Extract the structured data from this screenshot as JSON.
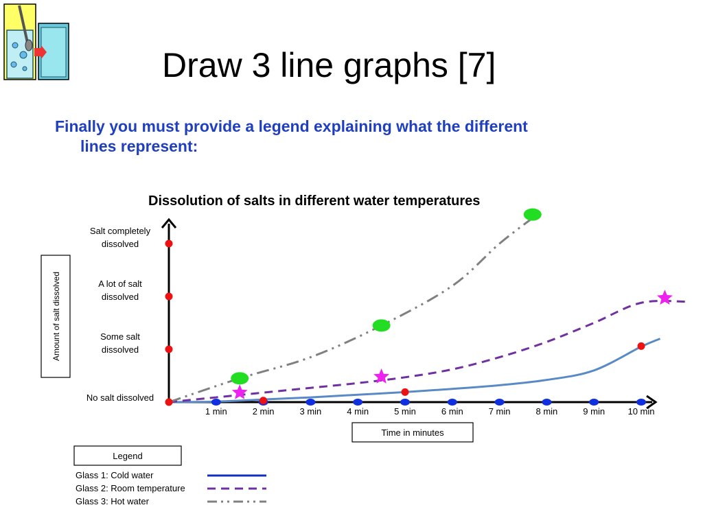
{
  "slide": {
    "title": "Draw 3 line graphs [7]",
    "body_line1": "Finally you must provide a legend explaining what the different",
    "body_line2": "lines represent:"
  },
  "colors": {
    "title": "#000000",
    "body": "#1f3fbf",
    "cold_line": "#5a8ac6",
    "cold_legend": "#1030c0",
    "room_line": "#7030a0",
    "hot_line": "#808080",
    "red_marker": "#ee1111",
    "blue_marker": "#1030e0",
    "green_marker": "#22dd22",
    "star_marker": "#ee22ee"
  },
  "chart_data": {
    "type": "line",
    "title": "Dissolution of salts in different water temperatures",
    "xlabel": "Time in minutes",
    "ylabel": "Amount of salt dissolved",
    "x_ticks": [
      "1 min",
      "2 min",
      "3 min",
      "4 min",
      "5 min",
      "6 min",
      "7 min",
      "8 min",
      "9 min",
      "10 min"
    ],
    "y_levels": [
      "No salt dissolved",
      "Some salt dissolved",
      "A lot of salt dissolved",
      "Salt completely dissolved"
    ],
    "legend_title": "Legend",
    "series": [
      {
        "name": "Glass 1: Cold water",
        "style": "solid",
        "x": [
          0,
          1,
          2,
          3,
          4,
          5,
          6,
          7,
          8,
          9,
          10,
          10.4
        ],
        "y": [
          0,
          0.01,
          0.05,
          0.09,
          0.14,
          0.19,
          0.25,
          0.32,
          0.42,
          0.6,
          1.05,
          1.2
        ],
        "markers": [
          {
            "x": 2,
            "y": 0.03
          },
          {
            "x": 5,
            "y": 0.19
          },
          {
            "x": 10,
            "y": 1.06
          }
        ]
      },
      {
        "name": "Glass 2: Room temperature",
        "style": "dashed",
        "x": [
          0,
          1,
          2,
          3,
          4,
          5,
          6,
          7,
          8,
          9,
          10,
          11
        ],
        "y": [
          0,
          0.09,
          0.18,
          0.27,
          0.36,
          0.47,
          0.62,
          0.85,
          1.14,
          1.5,
          1.88,
          1.9
        ],
        "markers": [
          {
            "x": 1.5,
            "y": 0.18
          },
          {
            "x": 4.5,
            "y": 0.48
          },
          {
            "x": 10.5,
            "y": 1.97
          }
        ]
      },
      {
        "name": "Glass 3: Hot water",
        "style": "dash-dot",
        "x": [
          0,
          1.5,
          3,
          4.5,
          6,
          7,
          7.8
        ],
        "y": [
          0,
          0.45,
          0.85,
          1.45,
          2.2,
          3.0,
          3.55
        ],
        "markers": [
          {
            "x": 1.5,
            "y": 0.45
          },
          {
            "x": 4.5,
            "y": 1.45
          },
          {
            "x": 7.7,
            "y": 3.55
          }
        ]
      }
    ],
    "y_axis_markers": [
      0,
      1,
      2,
      3
    ]
  }
}
